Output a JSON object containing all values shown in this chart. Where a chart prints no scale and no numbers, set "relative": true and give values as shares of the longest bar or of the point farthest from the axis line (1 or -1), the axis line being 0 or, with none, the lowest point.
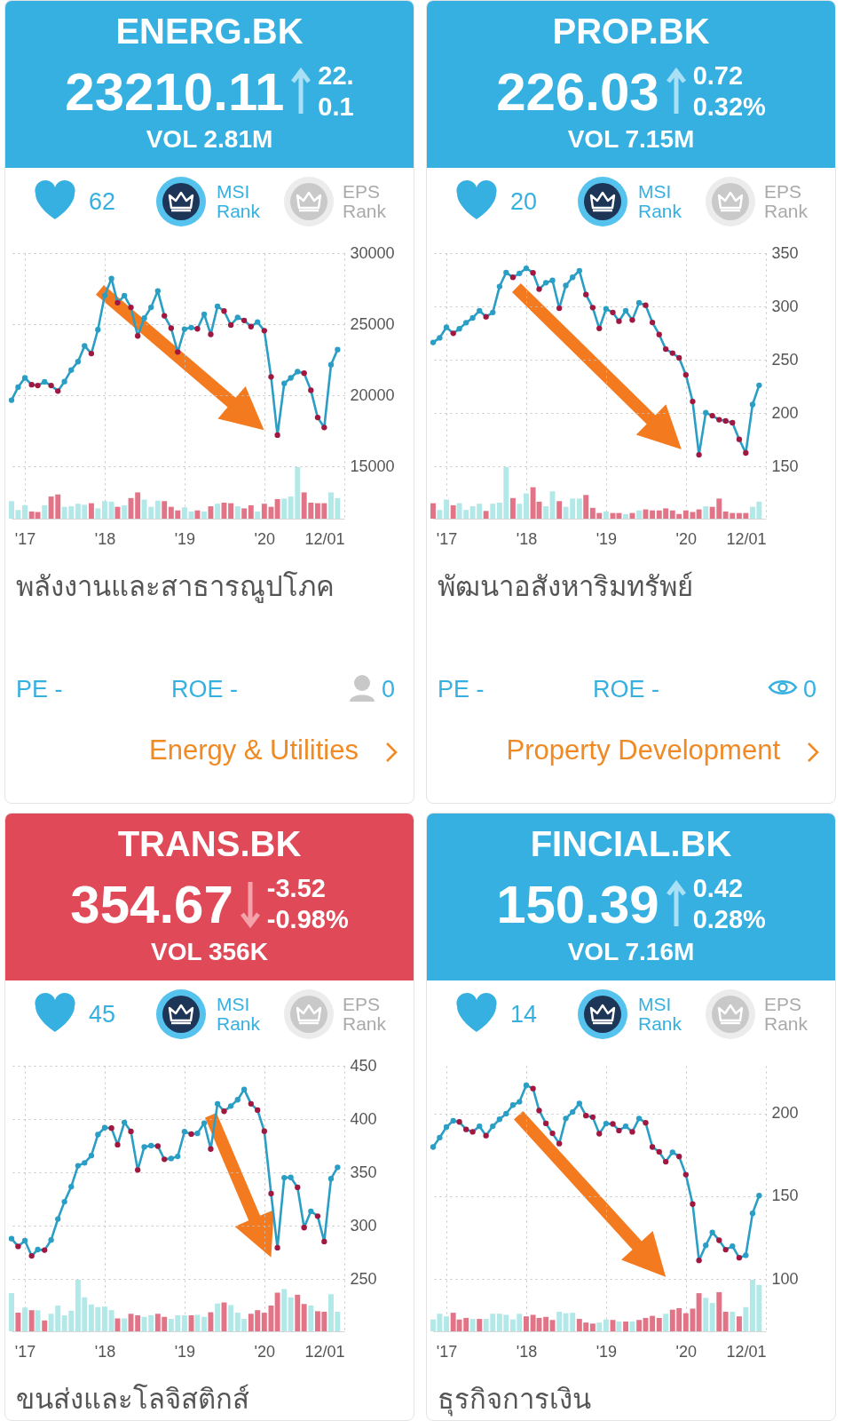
{
  "chart_data": [
    {
      "type": "other",
      "title": "ENERG.BK",
      "color": "#35b0e0",
      "annotations": [
        "23210.11",
        "22.",
        "0.1",
        "VOL 2.81M",
        "62",
        "MSI Rank",
        "EPS Rank"
      ]
    },
    {
      "type": "line",
      "x": [
        "2016-11",
        "2016-12",
        "2017-01",
        "2017-02",
        "2017-03",
        "2017-04",
        "2017-05",
        "2017-06",
        "2017-07",
        "2017-08",
        "2017-09",
        "2017-10",
        "2017-11",
        "2017-12",
        "2018-01",
        "2018-02",
        "2018-03",
        "2018-04",
        "2018-05",
        "2018-06",
        "2018-07",
        "2018-08",
        "2018-09",
        "2018-10",
        "2018-11",
        "2018-12",
        "2019-01",
        "2019-02",
        "2019-03",
        "2019-04",
        "2019-05",
        "2019-06",
        "2019-07",
        "2019-08",
        "2019-09",
        "2019-10",
        "2019-11",
        "2019-12",
        "2020-01",
        "2020-02",
        "2020-03",
        "2020-04",
        "2020-05",
        "2020-06",
        "2020-07",
        "2020-08",
        "2020-09",
        "2020-10",
        "2020-11",
        "2020-12"
      ],
      "xlim": [
        "2016-11",
        "2021-01"
      ],
      "xticks": [
        {
          "value": "2017-01",
          "label": null
        },
        {
          "value": "2018-01",
          "label": null
        },
        {
          "value": "2019-01",
          "label": null
        },
        {
          "value": "2020-01",
          "label": null
        },
        {
          "value": "2021-01",
          "label": null
        }
      ],
      "ylim": [
        15000,
        30000
      ],
      "yticks": [
        15000,
        20000,
        25000,
        30000
      ],
      "grid": true,
      "tick_labels": "y",
      "marker": "circle",
      "series": [
        {
          "color": "#2a9ec4",
          "colors": [
            "#2a9ec4",
            "#2a9ec4",
            "#2a9ec4",
            "#a01840",
            "#a01840",
            "#2a9ec4",
            "#a01840",
            "#a01840",
            "#2a9ec4",
            "#2a9ec4",
            "#2a9ec4",
            "#2a9ec4",
            "#a01840",
            "#2a9ec4",
            "#2a9ec4",
            "#2a9ec4",
            "#a01840",
            "#2a9ec4",
            "#a01840",
            "#a01840",
            "#2a9ec4",
            "#2a9ec4",
            "#2a9ec4",
            "#a01840",
            "#a01840",
            "#a01840",
            "#2a9ec4",
            "#2a9ec4",
            "#a01840",
            "#2a9ec4",
            "#a01840",
            "#2a9ec4",
            "#a01840",
            "#a01840",
            "#2a9ec4",
            "#a01840",
            "#a01840",
            "#2a9ec4",
            "#a01840",
            "#a01840",
            "#a01840",
            "#2a9ec4",
            "#2a9ec4",
            "#2a9ec4",
            "#a01840",
            "#a01840",
            "#a01840",
            "#a01840",
            "#2a9ec4",
            "#2a9ec4"
          ],
          "values": [
            19650,
            20570,
            21220,
            20740,
            20680,
            20940,
            20680,
            20290,
            20960,
            21770,
            22360,
            23470,
            22930,
            24610,
            27010,
            28210,
            26510,
            27010,
            26180,
            24170,
            25420,
            26180,
            27340,
            25590,
            24720,
            23040,
            24650,
            24760,
            24670,
            25700,
            24280,
            26250,
            25920,
            24940,
            25480,
            25260,
            24830,
            25150,
            24540,
            21290,
            17190,
            20830,
            21220,
            21660,
            21550,
            20350,
            18430,
            17730,
            22140,
            23210
          ]
        }
      ]
    },
    {
      "type": "bar",
      "relative": true,
      "x": [
        "2016-11",
        "2016-12",
        "2017-01",
        "2017-02",
        "2017-03",
        "2017-04",
        "2017-05",
        "2017-06",
        "2017-07",
        "2017-08",
        "2017-09",
        "2017-10",
        "2017-11",
        "2017-12",
        "2018-01",
        "2018-02",
        "2018-03",
        "2018-04",
        "2018-05",
        "2018-06",
        "2018-07",
        "2018-08",
        "2018-09",
        "2018-10",
        "2018-11",
        "2018-12",
        "2019-01",
        "2019-02",
        "2019-03",
        "2019-04",
        "2019-05",
        "2019-06",
        "2019-07",
        "2019-08",
        "2019-09",
        "2019-10",
        "2019-11",
        "2019-12",
        "2020-01",
        "2020-02",
        "2020-03",
        "2020-04",
        "2020-05",
        "2020-06",
        "2020-07",
        "2020-08",
        "2020-09",
        "2020-10",
        "2020-11",
        "2020-12"
      ],
      "xlim": [
        "2016-11",
        "2021-01"
      ],
      "xticks": [
        {
          "value": "2017-01",
          "label": "'17"
        },
        {
          "value": "2018-01",
          "label": "'18"
        },
        {
          "value": "2019-01",
          "label": "'19"
        },
        {
          "value": "2020-01",
          "label": "'20"
        },
        {
          "value": "2021-01",
          "label": "12/01"
        }
      ],
      "grid": "x",
      "colors": [
        "#b2e8e8",
        "#b2e8e8",
        "#b2e8e8",
        "#e27487",
        "#e27487",
        "#b2e8e8",
        "#e27487",
        "#e27487",
        "#b2e8e8",
        "#b2e8e8",
        "#b2e8e8",
        "#b2e8e8",
        "#e27487",
        "#b2e8e8",
        "#b2e8e8",
        "#b2e8e8",
        "#e27487",
        "#b2e8e8",
        "#e27487",
        "#e27487",
        "#b2e8e8",
        "#b2e8e8",
        "#b2e8e8",
        "#e27487",
        "#e27487",
        "#e27487",
        "#b2e8e8",
        "#b2e8e8",
        "#e27487",
        "#b2e8e8",
        "#e27487",
        "#b2e8e8",
        "#e27487",
        "#e27487",
        "#b2e8e8",
        "#e27487",
        "#e27487",
        "#b2e8e8",
        "#e27487",
        "#e27487",
        "#e27487",
        "#b2e8e8",
        "#b2e8e8",
        "#b2e8e8",
        "#e27487",
        "#e27487",
        "#e27487",
        "#e27487",
        "#b2e8e8",
        "#b2e8e8"
      ],
      "values": [
        0.34,
        0.17,
        0.26,
        0.14,
        0.13,
        0.26,
        0.43,
        0.47,
        0.23,
        0.24,
        0.29,
        0.27,
        0.3,
        0.2,
        0.34,
        0.33,
        0.23,
        0.26,
        0.4,
        0.51,
        0.37,
        0.23,
        0.35,
        0.34,
        0.23,
        0.16,
        0.22,
        0.14,
        0.16,
        0.14,
        0.24,
        0.29,
        0.31,
        0.3,
        0.24,
        0.2,
        0.26,
        0.14,
        0.29,
        0.23,
        0.38,
        0.39,
        0.43,
        1,
        0.51,
        0.31,
        0.3,
        0.3,
        0.51,
        0.4
      ]
    },
    {
      "type": "other",
      "title": "พลังงานและสาธารณูปโภค",
      "annotations": [
        "PE -",
        "ROE -",
        "0",
        "Energy & Utilities"
      ]
    },
    {
      "type": "other",
      "title": "PROP.BK",
      "color": "#35b0e0",
      "annotations": [
        "226.03",
        "0.72",
        "0.32%",
        "VOL 7.15M",
        "20",
        "MSI Rank",
        "EPS Rank"
      ]
    },
    {
      "type": "line",
      "x": [
        "2016-11",
        "2016-12",
        "2017-01",
        "2017-02",
        "2017-03",
        "2017-04",
        "2017-05",
        "2017-06",
        "2017-07",
        "2017-08",
        "2017-09",
        "2017-10",
        "2017-11",
        "2017-12",
        "2018-01",
        "2018-02",
        "2018-03",
        "2018-04",
        "2018-05",
        "2018-06",
        "2018-07",
        "2018-08",
        "2018-09",
        "2018-10",
        "2018-11",
        "2018-12",
        "2019-01",
        "2019-02",
        "2019-03",
        "2019-04",
        "2019-05",
        "2019-06",
        "2019-07",
        "2019-08",
        "2019-09",
        "2019-10",
        "2019-11",
        "2019-12",
        "2020-01",
        "2020-02",
        "2020-03",
        "2020-04",
        "2020-05",
        "2020-06",
        "2020-07",
        "2020-08",
        "2020-09",
        "2020-10",
        "2020-11",
        "2020-12"
      ],
      "xlim": [
        "2016-11",
        "2021-01"
      ],
      "xticks": [
        {
          "value": "2017-01",
          "label": null
        },
        {
          "value": "2018-01",
          "label": null
        },
        {
          "value": "2019-01",
          "label": null
        },
        {
          "value": "2020-01",
          "label": null
        },
        {
          "value": "2021-01",
          "label": null
        }
      ],
      "ylim": [
        150,
        350
      ],
      "yticks": [
        150,
        200,
        250,
        300,
        350
      ],
      "grid": true,
      "tick_labels": "y",
      "marker": "circle",
      "series": [
        {
          "color": "#2a9ec4",
          "colors": [
            "#2a9ec4",
            "#2a9ec4",
            "#2a9ec4",
            "#a01840",
            "#2a9ec4",
            "#2a9ec4",
            "#2a9ec4",
            "#2a9ec4",
            "#a01840",
            "#2a9ec4",
            "#2a9ec4",
            "#2a9ec4",
            "#a01840",
            "#2a9ec4",
            "#2a9ec4",
            "#a01840",
            "#a01840",
            "#2a9ec4",
            "#2a9ec4",
            "#a01840",
            "#2a9ec4",
            "#2a9ec4",
            "#2a9ec4",
            "#a01840",
            "#a01840",
            "#a01840",
            "#2a9ec4",
            "#a01840",
            "#a01840",
            "#2a9ec4",
            "#a01840",
            "#2a9ec4",
            "#a01840",
            "#a01840",
            "#a01840",
            "#a01840",
            "#a01840",
            "#a01840",
            "#a01840",
            "#a01840",
            "#a01840",
            "#2a9ec4",
            "#a01840",
            "#a01840",
            "#a01840",
            "#a01840",
            "#a01840",
            "#a01840",
            "#2a9ec4",
            "#2a9ec4"
          ],
          "values": [
            266.2,
            270.5,
            280.4,
            274.7,
            279.0,
            284.7,
            289.2,
            296.0,
            290.3,
            294.3,
            318.7,
            331.8,
            327.3,
            331.0,
            335.8,
            331.5,
            316.2,
            322.2,
            324.4,
            298.3,
            319.6,
            327.3,
            333.5,
            311.1,
            298.9,
            279.3,
            297.7,
            294.3,
            286.1,
            296.0,
            287.2,
            303.4,
            301.1,
            284.9,
            273.6,
            259.9,
            256.2,
            251.7,
            235.8,
            210.8,
            160.8,
            200.3,
            197.4,
            193.7,
            192.6,
            190.9,
            175.3,
            162.5,
            207.9,
            226.0
          ]
        }
      ]
    },
    {
      "type": "bar",
      "relative": true,
      "x": [
        "2016-11",
        "2016-12",
        "2017-01",
        "2017-02",
        "2017-03",
        "2017-04",
        "2017-05",
        "2017-06",
        "2017-07",
        "2017-08",
        "2017-09",
        "2017-10",
        "2017-11",
        "2017-12",
        "2018-01",
        "2018-02",
        "2018-03",
        "2018-04",
        "2018-05",
        "2018-06",
        "2018-07",
        "2018-08",
        "2018-09",
        "2018-10",
        "2018-11",
        "2018-12",
        "2019-01",
        "2019-02",
        "2019-03",
        "2019-04",
        "2019-05",
        "2019-06",
        "2019-07",
        "2019-08",
        "2019-09",
        "2019-10",
        "2019-11",
        "2019-12",
        "2020-01",
        "2020-02",
        "2020-03",
        "2020-04",
        "2020-05",
        "2020-06",
        "2020-07",
        "2020-08",
        "2020-09",
        "2020-10",
        "2020-11",
        "2020-12"
      ],
      "xlim": [
        "2016-11",
        "2021-01"
      ],
      "xticks": [
        {
          "value": "2017-01",
          "label": "'17"
        },
        {
          "value": "2018-01",
          "label": "'18"
        },
        {
          "value": "2019-01",
          "label": "'19"
        },
        {
          "value": "2020-01",
          "label": "'20"
        },
        {
          "value": "2021-01",
          "label": "12/01"
        }
      ],
      "grid": "x",
      "colors": [
        "#e27487",
        "#b2e8e8",
        "#b2e8e8",
        "#e27487",
        "#b2e8e8",
        "#b2e8e8",
        "#b2e8e8",
        "#b2e8e8",
        "#e27487",
        "#b2e8e8",
        "#b2e8e8",
        "#b2e8e8",
        "#e27487",
        "#b2e8e8",
        "#b2e8e8",
        "#e27487",
        "#e27487",
        "#b2e8e8",
        "#b2e8e8",
        "#e27487",
        "#b2e8e8",
        "#b2e8e8",
        "#b2e8e8",
        "#e27487",
        "#e27487",
        "#e27487",
        "#b2e8e8",
        "#e27487",
        "#e27487",
        "#b2e8e8",
        "#e27487",
        "#b2e8e8",
        "#e27487",
        "#e27487",
        "#e27487",
        "#e27487",
        "#e27487",
        "#e27487",
        "#e27487",
        "#e27487",
        "#e27487",
        "#b2e8e8",
        "#e27487",
        "#e27487",
        "#e27487",
        "#e27487",
        "#e27487",
        "#e27487",
        "#b2e8e8",
        "#b2e8e8"
      ],
      "values": [
        0.3,
        0.17,
        0.37,
        0.26,
        0.3,
        0.17,
        0.24,
        0.29,
        0.15,
        0.29,
        0.31,
        1,
        0.4,
        0.29,
        0.49,
        0.61,
        0.33,
        0.24,
        0.53,
        0.34,
        0.23,
        0.39,
        0.39,
        0.46,
        0.21,
        0.11,
        0.14,
        0.11,
        0.11,
        0.09,
        0.11,
        0.16,
        0.18,
        0.16,
        0.16,
        0.2,
        0.16,
        0.09,
        0.16,
        0.13,
        0.18,
        0.24,
        0.23,
        0.39,
        0.14,
        0.11,
        0.11,
        0.11,
        0.23,
        0.33
      ]
    },
    {
      "type": "other",
      "title": "พัฒนาอสังหาริมทรัพย์",
      "annotations": [
        "PE -",
        "ROE -",
        "0",
        "Property Development"
      ]
    },
    {
      "type": "other",
      "title": "TRANS.BK",
      "color": "#e04a58",
      "annotations": [
        "354.67",
        "-3.52",
        "-0.98%",
        "VOL 356K",
        "45",
        "MSI Rank",
        "EPS Rank"
      ]
    },
    {
      "type": "line",
      "x": [
        "2016-11",
        "2016-12",
        "2017-01",
        "2017-02",
        "2017-03",
        "2017-04",
        "2017-05",
        "2017-06",
        "2017-07",
        "2017-08",
        "2017-09",
        "2017-10",
        "2017-11",
        "2017-12",
        "2018-01",
        "2018-02",
        "2018-03",
        "2018-04",
        "2018-05",
        "2018-06",
        "2018-07",
        "2018-08",
        "2018-09",
        "2018-10",
        "2018-11",
        "2018-12",
        "2019-01",
        "2019-02",
        "2019-03",
        "2019-04",
        "2019-05",
        "2019-06",
        "2019-07",
        "2019-08",
        "2019-09",
        "2019-10",
        "2019-11",
        "2019-12",
        "2020-01",
        "2020-02",
        "2020-03",
        "2020-04",
        "2020-05",
        "2020-06",
        "2020-07",
        "2020-08",
        "2020-09",
        "2020-10",
        "2020-11",
        "2020-12"
      ],
      "xlim": [
        "2016-11",
        "2021-01"
      ],
      "xticks": [
        {
          "value": "2017-01",
          "label": null
        },
        {
          "value": "2018-01",
          "label": null
        },
        {
          "value": "2019-01",
          "label": null
        },
        {
          "value": "2020-01",
          "label": null
        },
        {
          "value": "2021-01",
          "label": null
        }
      ],
      "ylim": [
        250,
        450
      ],
      "yticks": [
        250,
        300,
        350,
        400,
        450
      ],
      "grid": true,
      "tick_labels": "y",
      "marker": "circle",
      "series": [
        {
          "color": "#2a9ec4",
          "colors": [
            "#2a9ec4",
            "#a01840",
            "#2a9ec4",
            "#a01840",
            "#2a9ec4",
            "#a01840",
            "#2a9ec4",
            "#2a9ec4",
            "#2a9ec4",
            "#2a9ec4",
            "#2a9ec4",
            "#2a9ec4",
            "#2a9ec4",
            "#2a9ec4",
            "#2a9ec4",
            "#a01840",
            "#a01840",
            "#2a9ec4",
            "#a01840",
            "#a01840",
            "#2a9ec4",
            "#2a9ec4",
            "#a01840",
            "#a01840",
            "#2a9ec4",
            "#2a9ec4",
            "#2a9ec4",
            "#a01840",
            "#2a9ec4",
            "#2a9ec4",
            "#a01840",
            "#2a9ec4",
            "#a01840",
            "#2a9ec4",
            "#2a9ec4",
            "#2a9ec4",
            "#a01840",
            "#a01840",
            "#a01840",
            "#a01840",
            "#a01840",
            "#2a9ec4",
            "#2a9ec4",
            "#a01840",
            "#a01840",
            "#2a9ec4",
            "#a01840",
            "#a01840",
            "#2a9ec4",
            "#2a9ec4"
          ],
          "values": [
            287.8,
            280.5,
            285.9,
            271.6,
            277.5,
            277.0,
            286.5,
            306.2,
            322.4,
            336.5,
            356.2,
            358.9,
            365.7,
            385.4,
            391.9,
            391.5,
            375.9,
            396.8,
            388.4,
            352.2,
            373.8,
            375.1,
            374.6,
            362.2,
            363.0,
            364.9,
            388.1,
            385.9,
            386.5,
            396.2,
            371.9,
            414.3,
            407.3,
            412.2,
            418.1,
            427.8,
            414.3,
            408.4,
            388.6,
            330.0,
            279.2,
            344.9,
            345.2,
            335.9,
            298.1,
            313.5,
            308.9,
            285.1,
            344.0,
            354.7
          ]
        }
      ]
    },
    {
      "type": "bar",
      "relative": true,
      "x": [
        "2016-11",
        "2016-12",
        "2017-01",
        "2017-02",
        "2017-03",
        "2017-04",
        "2017-05",
        "2017-06",
        "2017-07",
        "2017-08",
        "2017-09",
        "2017-10",
        "2017-11",
        "2017-12",
        "2018-01",
        "2018-02",
        "2018-03",
        "2018-04",
        "2018-05",
        "2018-06",
        "2018-07",
        "2018-08",
        "2018-09",
        "2018-10",
        "2018-11",
        "2018-12",
        "2019-01",
        "2019-02",
        "2019-03",
        "2019-04",
        "2019-05",
        "2019-06",
        "2019-07",
        "2019-08",
        "2019-09",
        "2019-10",
        "2019-11",
        "2019-12",
        "2020-01",
        "2020-02",
        "2020-03",
        "2020-04",
        "2020-05",
        "2020-06",
        "2020-07",
        "2020-08",
        "2020-09",
        "2020-10",
        "2020-11",
        "2020-12"
      ],
      "xlim": [
        "2016-11",
        "2021-01"
      ],
      "xticks": [
        {
          "value": "2017-01",
          "label": "'17"
        },
        {
          "value": "2018-01",
          "label": "'18"
        },
        {
          "value": "2019-01",
          "label": "'19"
        },
        {
          "value": "2020-01",
          "label": "'20"
        },
        {
          "value": "2021-01",
          "label": "12/01"
        }
      ],
      "grid": "x",
      "colors": [
        "#b2e8e8",
        "#e27487",
        "#b2e8e8",
        "#e27487",
        "#b2e8e8",
        "#e27487",
        "#b2e8e8",
        "#b2e8e8",
        "#b2e8e8",
        "#b2e8e8",
        "#b2e8e8",
        "#b2e8e8",
        "#b2e8e8",
        "#b2e8e8",
        "#b2e8e8",
        "#b2e8e8",
        "#e27487",
        "#b2e8e8",
        "#e27487",
        "#e27487",
        "#b2e8e8",
        "#b2e8e8",
        "#e27487",
        "#e27487",
        "#b2e8e8",
        "#b2e8e8",
        "#b2e8e8",
        "#e27487",
        "#b2e8e8",
        "#b2e8e8",
        "#e27487",
        "#b2e8e8",
        "#e27487",
        "#b2e8e8",
        "#b2e8e8",
        "#b2e8e8",
        "#e27487",
        "#e27487",
        "#e27487",
        "#e27487",
        "#e27487",
        "#b2e8e8",
        "#b2e8e8",
        "#e27487",
        "#e27487",
        "#b2e8e8",
        "#e27487",
        "#e27487",
        "#b2e8e8",
        "#b2e8e8"
      ],
      "values": [
        0.74,
        0.36,
        0.46,
        0.41,
        0.41,
        0.21,
        0.34,
        0.5,
        0.31,
        0.4,
        1,
        0.66,
        0.52,
        0.47,
        0.48,
        0.41,
        0.25,
        0.25,
        0.34,
        0.31,
        0.28,
        0.31,
        0.34,
        0.28,
        0.24,
        0.31,
        0.31,
        0.31,
        0.32,
        0.28,
        0.37,
        0.54,
        0.56,
        0.51,
        0.36,
        0.24,
        0.34,
        0.41,
        0.36,
        0.5,
        0.75,
        0.82,
        0.66,
        0.71,
        0.53,
        0.5,
        0.39,
        0.38,
        0.72,
        0.38
      ]
    },
    {
      "type": "other",
      "title": "ขนส่งและโลจิสติกส์"
    },
    {
      "type": "other",
      "title": "FINCIAL.BK",
      "color": "#35b0e0",
      "annotations": [
        "150.39",
        "0.42",
        "0.28%",
        "VOL 7.16M",
        "14",
        "MSI Rank",
        "EPS Rank"
      ]
    },
    {
      "type": "line",
      "x": [
        "2016-11",
        "2016-12",
        "2017-01",
        "2017-02",
        "2017-03",
        "2017-04",
        "2017-05",
        "2017-06",
        "2017-07",
        "2017-08",
        "2017-09",
        "2017-10",
        "2017-11",
        "2017-12",
        "2018-01",
        "2018-02",
        "2018-03",
        "2018-04",
        "2018-05",
        "2018-06",
        "2018-07",
        "2018-08",
        "2018-09",
        "2018-10",
        "2018-11",
        "2018-12",
        "2019-01",
        "2019-02",
        "2019-03",
        "2019-04",
        "2019-05",
        "2019-06",
        "2019-07",
        "2019-08",
        "2019-09",
        "2019-10",
        "2019-11",
        "2019-12",
        "2020-01",
        "2020-02",
        "2020-03",
        "2020-04",
        "2020-05",
        "2020-06",
        "2020-07",
        "2020-08",
        "2020-09",
        "2020-10",
        "2020-11",
        "2020-12"
      ],
      "xlim": [
        "2016-11",
        "2021-01"
      ],
      "xticks": [
        {
          "value": "2017-01",
          "label": null
        },
        {
          "value": "2018-01",
          "label": null
        },
        {
          "value": "2019-01",
          "label": null
        },
        {
          "value": "2020-01",
          "label": null
        },
        {
          "value": "2021-01",
          "label": null
        }
      ],
      "ylim": [
        100,
        229
      ],
      "yticks": [
        100,
        150,
        200
      ],
      "grid": true,
      "tick_labels": "y",
      "marker": "circle",
      "series": [
        {
          "color": "#2a9ec4",
          "colors": [
            "#2a9ec4",
            "#2a9ec4",
            "#2a9ec4",
            "#2a9ec4",
            "#a01840",
            "#a01840",
            "#a01840",
            "#2a9ec4",
            "#a01840",
            "#2a9ec4",
            "#2a9ec4",
            "#2a9ec4",
            "#2a9ec4",
            "#2a9ec4",
            "#2a9ec4",
            "#a01840",
            "#a01840",
            "#a01840",
            "#a01840",
            "#a01840",
            "#2a9ec4",
            "#2a9ec4",
            "#2a9ec4",
            "#a01840",
            "#a01840",
            "#a01840",
            "#2a9ec4",
            "#a01840",
            "#a01840",
            "#2a9ec4",
            "#a01840",
            "#2a9ec4",
            "#a01840",
            "#a01840",
            "#a01840",
            "#a01840",
            "#2a9ec4",
            "#a01840",
            "#a01840",
            "#a01840",
            "#a01840",
            "#2a9ec4",
            "#2a9ec4",
            "#a01840",
            "#a01840",
            "#2a9ec4",
            "#a01840",
            "#2a9ec4",
            "#2a9ec4",
            "#2a9ec4"
          ],
          "values": [
            179.8,
            185.5,
            191.9,
            195.7,
            195.0,
            190.5,
            189.0,
            192.4,
            186.7,
            192.4,
            196.6,
            200.0,
            205.2,
            207.2,
            217.2,
            215.2,
            201.9,
            194.1,
            188.1,
            181.9,
            197.1,
            201.0,
            206.2,
            198.8,
            197.9,
            187.9,
            194.0,
            193.8,
            189.8,
            192.4,
            189.0,
            197.1,
            194.5,
            179.8,
            176.9,
            170.9,
            176.7,
            174.1,
            163.1,
            145.3,
            111.2,
            120.3,
            128.1,
            123.4,
            117.7,
            119.8,
            112.8,
            114.3,
            139.7,
            150.4
          ]
        }
      ]
    },
    {
      "type": "bar",
      "relative": true,
      "x": [
        "2016-11",
        "2016-12",
        "2017-01",
        "2017-02",
        "2017-03",
        "2017-04",
        "2017-05",
        "2017-06",
        "2017-07",
        "2017-08",
        "2017-09",
        "2017-10",
        "2017-11",
        "2017-12",
        "2018-01",
        "2018-02",
        "2018-03",
        "2018-04",
        "2018-05",
        "2018-06",
        "2018-07",
        "2018-08",
        "2018-09",
        "2018-10",
        "2018-11",
        "2018-12",
        "2019-01",
        "2019-02",
        "2019-03",
        "2019-04",
        "2019-05",
        "2019-06",
        "2019-07",
        "2019-08",
        "2019-09",
        "2019-10",
        "2019-11",
        "2019-12",
        "2020-01",
        "2020-02",
        "2020-03",
        "2020-04",
        "2020-05",
        "2020-06",
        "2020-07",
        "2020-08",
        "2020-09",
        "2020-10",
        "2020-11",
        "2020-12"
      ],
      "xlim": [
        "2016-11",
        "2021-01"
      ],
      "xticks": [
        {
          "value": "2017-01",
          "label": "'17"
        },
        {
          "value": "2018-01",
          "label": "'18"
        },
        {
          "value": "2019-01",
          "label": "'19"
        },
        {
          "value": "2020-01",
          "label": "'20"
        },
        {
          "value": "2021-01",
          "label": "12/01"
        }
      ],
      "grid": "x",
      "colors": [
        "#b2e8e8",
        "#b2e8e8",
        "#b2e8e8",
        "#e27487",
        "#e27487",
        "#e27487",
        "#b2e8e8",
        "#e27487",
        "#b2e8e8",
        "#b2e8e8",
        "#b2e8e8",
        "#b2e8e8",
        "#b2e8e8",
        "#b2e8e8",
        "#e27487",
        "#e27487",
        "#e27487",
        "#e27487",
        "#e27487",
        "#b2e8e8",
        "#b2e8e8",
        "#b2e8e8",
        "#e27487",
        "#e27487",
        "#e27487",
        "#b2e8e8",
        "#b2e8e8",
        "#e27487",
        "#b2e8e8",
        "#e27487",
        "#b2e8e8",
        "#e27487",
        "#e27487",
        "#e27487",
        "#e27487",
        "#b2e8e8",
        "#e27487",
        "#e27487",
        "#e27487",
        "#e27487",
        "#e27487",
        "#b2e8e8",
        "#b2e8e8",
        "#e27487",
        "#e27487",
        "#b2e8e8",
        "#e27487",
        "#b2e8e8",
        "#b2e8e8",
        "#b2e8e8"
      ],
      "values": [
        0.23,
        0.34,
        0.29,
        0.36,
        0.23,
        0.26,
        0.24,
        0.24,
        0.24,
        0.34,
        0.34,
        0.32,
        0.23,
        0.34,
        0.29,
        0.32,
        0.26,
        0.28,
        0.22,
        0.38,
        0.35,
        0.36,
        0.24,
        0.17,
        0.15,
        0.17,
        0.23,
        0.22,
        0.19,
        0.19,
        0.19,
        0.22,
        0.26,
        0.3,
        0.26,
        0.34,
        0.42,
        0.45,
        0.35,
        0.44,
        0.74,
        0.65,
        0.55,
        0.76,
        0.38,
        0.38,
        0.29,
        0.47,
        1,
        0.9
      ]
    },
    {
      "type": "other",
      "title": "ธุรกิจการเงิน"
    }
  ]
}
